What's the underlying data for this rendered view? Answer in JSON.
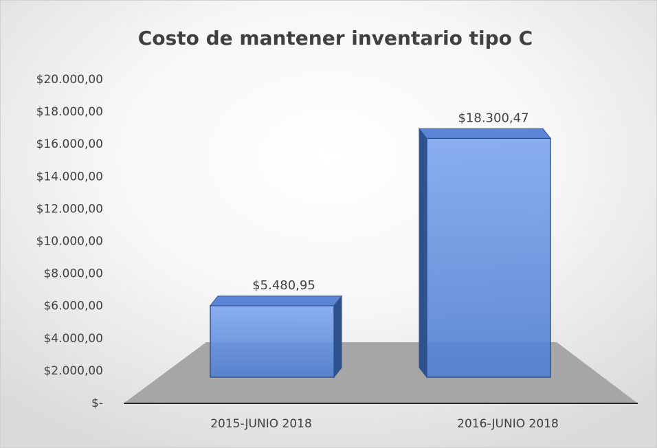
{
  "chart_data": {
    "type": "bar3d",
    "title": "Costo de mantener inventario tipo C",
    "categories": [
      "2015-JUNIO 2018",
      "2016-JUNIO 2018"
    ],
    "values": [
      5480.95,
      18300.47
    ],
    "value_labels": [
      "$5.480,95",
      "$18.300,47"
    ],
    "color": "#4472c4",
    "ylim": [
      0,
      20000
    ],
    "yticks": [
      {
        "value": 0,
        "label": "$-"
      },
      {
        "value": 2000,
        "label": "$2.000,00"
      },
      {
        "value": 4000,
        "label": "$4.000,00"
      },
      {
        "value": 6000,
        "label": "$6.000,00"
      },
      {
        "value": 8000,
        "label": "$8.000,00"
      },
      {
        "value": 10000,
        "label": "$10.000,00"
      },
      {
        "value": 12000,
        "label": "$12.000,00"
      },
      {
        "value": 14000,
        "label": "$14.000,00"
      },
      {
        "value": 16000,
        "label": "$16.000,00"
      },
      {
        "value": 18000,
        "label": "$18.000,00"
      },
      {
        "value": 20000,
        "label": "$20.000,00"
      }
    ]
  }
}
